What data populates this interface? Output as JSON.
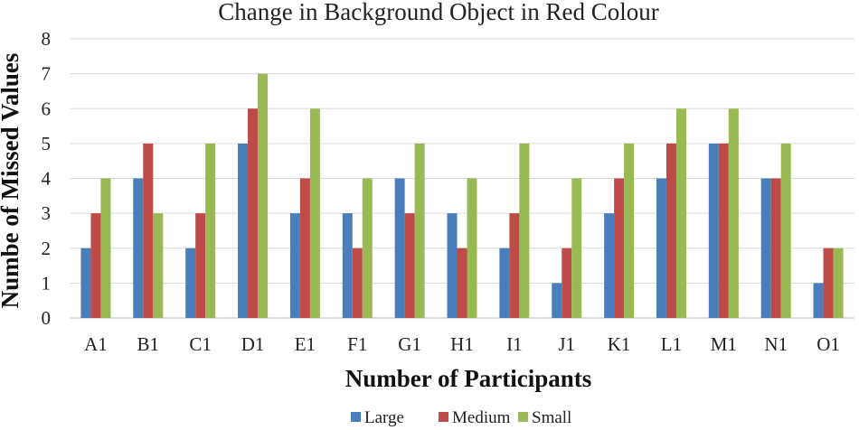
{
  "chart_data": {
    "type": "bar",
    "title": "Change in Background Object in Red Colour",
    "xlabel": "Number of Participants",
    "ylabel": "Numbe of Missed Values",
    "categories": [
      "A1",
      "B1",
      "C1",
      "D1",
      "E1",
      "F1",
      "G1",
      "H1",
      "I1",
      "J1",
      "K1",
      "L1",
      "M1",
      "N1",
      "O1"
    ],
    "series": [
      {
        "name": "Large",
        "color": "#4a7ebb",
        "values": [
          2,
          4,
          2,
          5,
          3,
          3,
          4,
          3,
          2,
          1,
          3,
          4,
          5,
          4,
          1
        ]
      },
      {
        "name": "Medium",
        "color": "#be4b48",
        "values": [
          3,
          5,
          3,
          6,
          4,
          2,
          3,
          2,
          3,
          2,
          4,
          5,
          5,
          4,
          2
        ]
      },
      {
        "name": "Small",
        "color": "#98b954",
        "values": [
          4,
          3,
          5,
          7,
          6,
          4,
          5,
          4,
          5,
          4,
          5,
          6,
          6,
          5,
          2
        ]
      }
    ],
    "ylim": [
      0,
      8
    ],
    "yticks": [
      0,
      1,
      2,
      3,
      4,
      5,
      6,
      7,
      8
    ],
    "grid": true,
    "legend": "bottom"
  }
}
